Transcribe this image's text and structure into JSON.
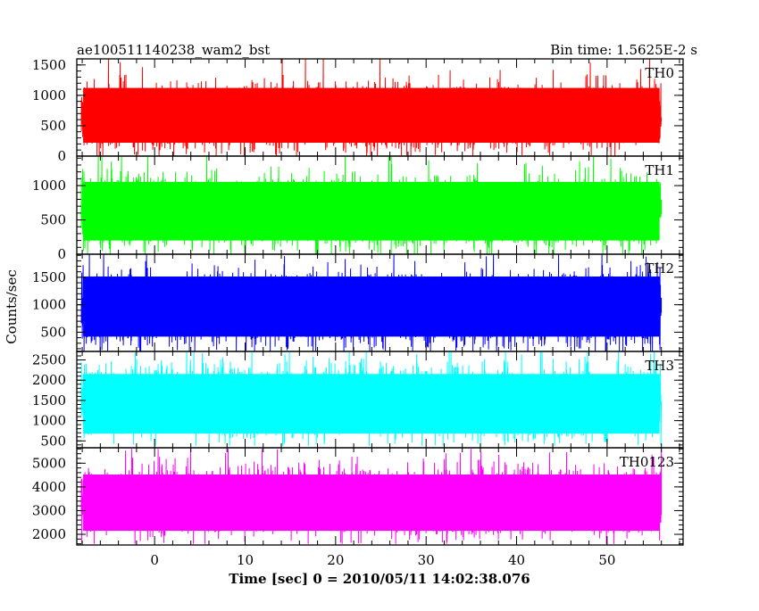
{
  "chart_data": {
    "type": "line",
    "title": "ae100511140238_wam2_bst",
    "subtitle": "Bin time: 1.5625E-2 s",
    "xlabel": "Time [sec] 0 = 2010/05/11 14:02:38.076",
    "ylabel": "Counts/sec",
    "xlim": [
      -8.6,
      58.4
    ],
    "x_ticks": [
      0,
      10,
      20,
      30,
      40,
      50
    ],
    "x_minor_step": 2,
    "x_data_range": [
      -8.1,
      56.0
    ],
    "grid": false,
    "panels": [
      {
        "name": "TH0",
        "color": "#ff0000",
        "ylim": [
          0,
          1600
        ],
        "y_ticks": [
          0,
          500,
          1000,
          1500
        ],
        "y_minor_step": 100,
        "mean": 620,
        "lower_envelope": 220,
        "upper_envelope": 1150,
        "max": 1650,
        "min": 0
      },
      {
        "name": "TH1",
        "color": "#00ff00",
        "ylim": [
          0,
          1430
        ],
        "y_ticks": [
          0,
          500,
          1000
        ],
        "y_minor_step": 100,
        "mean": 590,
        "lower_envelope": 200,
        "upper_envelope": 1080,
        "max": 1450,
        "min": 0
      },
      {
        "name": "TH2",
        "color": "#0000ff",
        "ylim": [
          150,
          1920
        ],
        "y_ticks": [
          500,
          1000,
          1500
        ],
        "y_minor_step": 100,
        "mean": 900,
        "lower_envelope": 420,
        "upper_envelope": 1550,
        "max": 1930,
        "min": 150
      },
      {
        "name": "TH3",
        "color": "#00ffff",
        "ylim": [
          330,
          2710
        ],
        "y_ticks": [
          500,
          1000,
          1500,
          2000,
          2500
        ],
        "y_minor_step": 100,
        "mean": 1450,
        "lower_envelope": 680,
        "upper_envelope": 2200,
        "max": 2710,
        "min": 380
      },
      {
        "name": "TH0123",
        "color": "#ff00ff",
        "ylim": [
          1550,
          5650
        ],
        "y_ticks": [
          2000,
          3000,
          4000,
          5000
        ],
        "y_minor_step": 200,
        "mean": 3400,
        "lower_envelope": 2150,
        "upper_envelope": 4600,
        "max": 5600,
        "min": 1600
      }
    ]
  }
}
